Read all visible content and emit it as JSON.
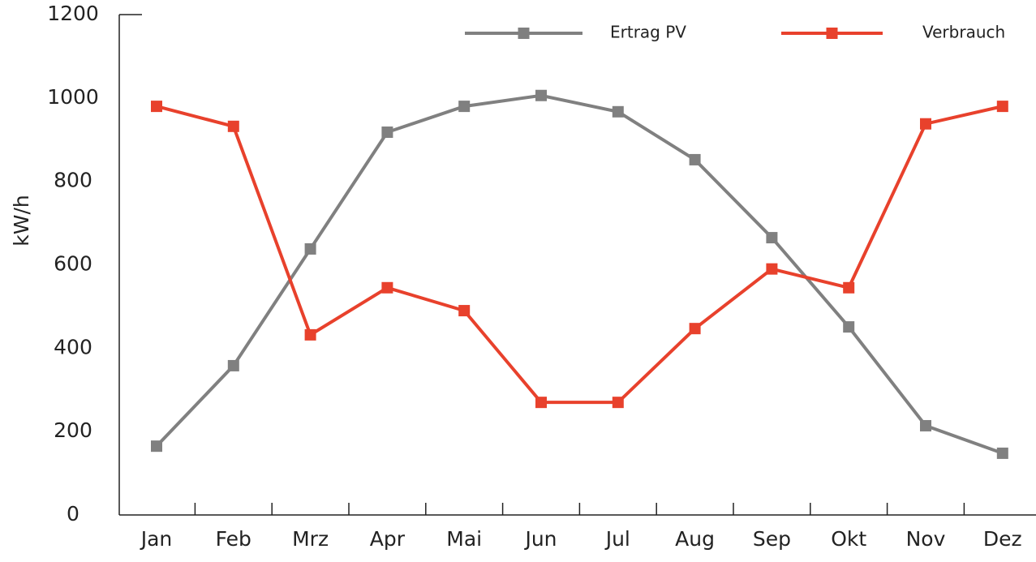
{
  "chart_data": {
    "type": "line",
    "y_label": "kW/h",
    "categories": [
      "Jan",
      "Feb",
      "Mrz",
      "Apr",
      "Mai",
      "Jun",
      "Jul",
      "Aug",
      "Sep",
      "Okt",
      "Nov",
      "Dez"
    ],
    "series": [
      {
        "name": "Ertrag PV",
        "color": "#808080",
        "values": [
          165,
          358,
          638,
          918,
          980,
          1006,
          967,
          852,
          665,
          451,
          214,
          148
        ]
      },
      {
        "name": "Verbrauch",
        "color": "#e8412c",
        "values": [
          980,
          932,
          432,
          545,
          490,
          270,
          270,
          447,
          590,
          545,
          938,
          980
        ]
      }
    ],
    "ylim": [
      0,
      1200
    ],
    "yticks": [
      0,
      200,
      400,
      600,
      800,
      1000,
      1200
    ],
    "legend": "top",
    "grid": false
  }
}
